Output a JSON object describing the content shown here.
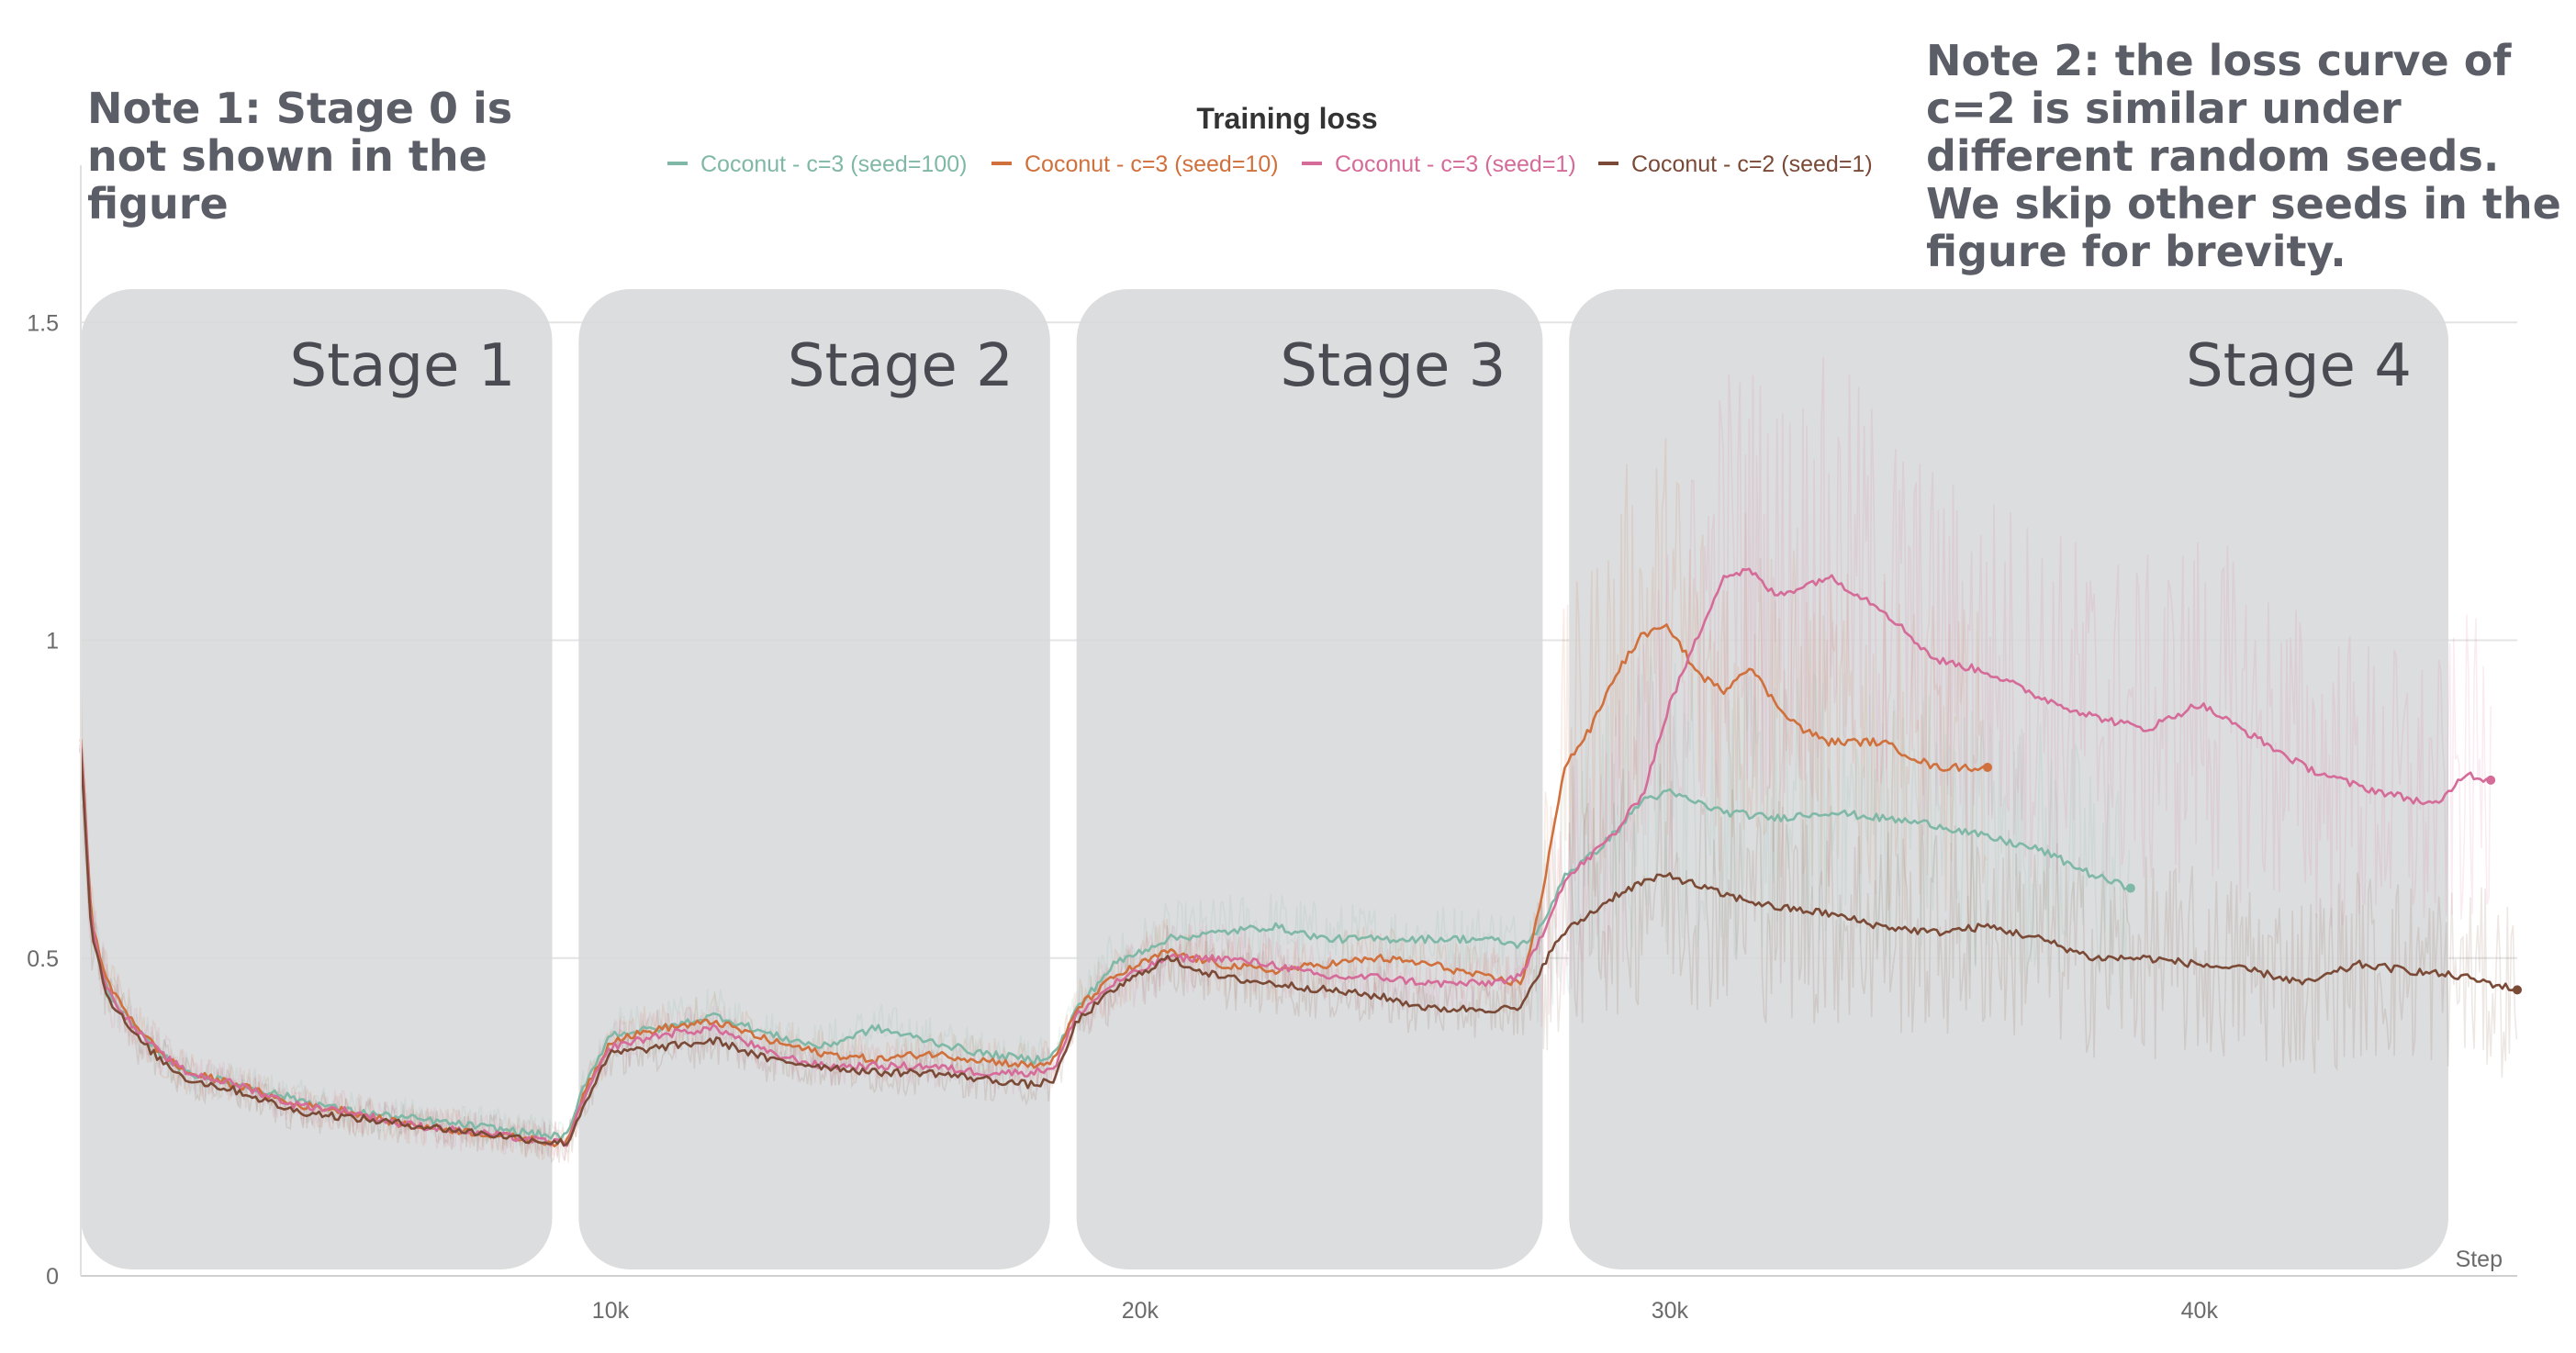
{
  "notes": {
    "note1": "Note 1: Stage 0 is not shown in the figure",
    "note2": "Note 2: the loss curve of c=2 is similar under different random seeds. We skip other seeds in the figure for brevity."
  },
  "chart_data": {
    "type": "line",
    "title": "Training loss",
    "xlabel": "Step",
    "ylabel": "",
    "xlim": [
      0,
      46000
    ],
    "ylim": [
      0,
      1.6
    ],
    "x_ticks": [
      10000,
      20000,
      30000,
      40000
    ],
    "x_tick_labels": [
      "10k",
      "20k",
      "30k",
      "40k"
    ],
    "y_ticks": [
      0,
      0.5,
      1,
      1.5
    ],
    "y_tick_labels": [
      "0",
      "0.5",
      "1",
      "1.5"
    ],
    "grid": true,
    "legend_position": "top-center",
    "stages": [
      {
        "label": "Stage 1",
        "x": [
          0,
          8900
        ]
      },
      {
        "label": "Stage 2",
        "x": [
          9400,
          18300
        ]
      },
      {
        "label": "Stage 3",
        "x": [
          18800,
          27600
        ]
      },
      {
        "label": "Stage 4",
        "x": [
          28100,
          44700
        ]
      }
    ],
    "series": [
      {
        "name": "Coconut - c=3 (seed=100)",
        "color": "#7fb8a6",
        "x": [
          0,
          200,
          500,
          1000,
          1500,
          2000,
          3000,
          4000,
          5000,
          6000,
          7000,
          8000,
          8900,
          9200,
          9500,
          10000,
          11000,
          12000,
          13000,
          14000,
          15000,
          16000,
          17000,
          18000,
          18400,
          18800,
          19500,
          20500,
          21500,
          22500,
          23500,
          24500,
          25500,
          26500,
          27200,
          27600,
          28000,
          28500,
          29000,
          29500,
          30000,
          31000,
          32000,
          33000,
          34000,
          35000,
          36000,
          37000,
          38000,
          38700
        ],
        "y": [
          0.83,
          0.55,
          0.45,
          0.39,
          0.35,
          0.32,
          0.3,
          0.28,
          0.26,
          0.25,
          0.24,
          0.23,
          0.22,
          0.22,
          0.3,
          0.38,
          0.39,
          0.41,
          0.38,
          0.36,
          0.39,
          0.37,
          0.35,
          0.34,
          0.35,
          0.42,
          0.49,
          0.53,
          0.54,
          0.55,
          0.53,
          0.53,
          0.53,
          0.53,
          0.52,
          0.55,
          0.63,
          0.66,
          0.7,
          0.75,
          0.76,
          0.73,
          0.72,
          0.73,
          0.72,
          0.71,
          0.69,
          0.67,
          0.63,
          0.61
        ]
      },
      {
        "name": "Coconut - c=3 (seed=10)",
        "color": "#d0703c",
        "x": [
          0,
          200,
          500,
          1000,
          1500,
          2000,
          3000,
          4000,
          5000,
          6000,
          7000,
          8000,
          8900,
          9200,
          9500,
          10000,
          11000,
          12000,
          13000,
          14000,
          15000,
          16000,
          17000,
          18000,
          18400,
          18800,
          19500,
          20500,
          21500,
          22500,
          23500,
          24500,
          25500,
          26500,
          27200,
          27600,
          28000,
          28500,
          29000,
          29500,
          30000,
          30500,
          31000,
          31500,
          32000,
          32500,
          33000,
          34000,
          35000,
          36000
        ],
        "y": [
          0.85,
          0.56,
          0.46,
          0.4,
          0.35,
          0.32,
          0.3,
          0.27,
          0.26,
          0.24,
          0.23,
          0.22,
          0.21,
          0.21,
          0.29,
          0.37,
          0.39,
          0.4,
          0.37,
          0.35,
          0.34,
          0.35,
          0.34,
          0.33,
          0.34,
          0.42,
          0.47,
          0.51,
          0.49,
          0.48,
          0.49,
          0.5,
          0.49,
          0.47,
          0.46,
          0.6,
          0.8,
          0.86,
          0.95,
          1.01,
          1.02,
          0.95,
          0.92,
          0.96,
          0.9,
          0.86,
          0.84,
          0.84,
          0.8,
          0.8
        ]
      },
      {
        "name": "Coconut - c=3 (seed=1)",
        "color": "#d56b98",
        "x": [
          0,
          200,
          500,
          1000,
          1500,
          2000,
          3000,
          4000,
          5000,
          6000,
          7000,
          8000,
          8900,
          9200,
          9500,
          10000,
          11000,
          12000,
          13000,
          14000,
          15000,
          16000,
          17000,
          18000,
          18400,
          18800,
          19500,
          20500,
          21500,
          22500,
          23500,
          24500,
          25500,
          26500,
          27200,
          27600,
          28000,
          28500,
          29000,
          29500,
          30000,
          30500,
          31000,
          31500,
          32000,
          33000,
          34000,
          35000,
          36000,
          37000,
          38000,
          39000,
          40000,
          41000,
          42000,
          43000,
          44000,
          44500,
          45000,
          45500
        ],
        "y": [
          0.84,
          0.55,
          0.45,
          0.39,
          0.35,
          0.32,
          0.3,
          0.27,
          0.26,
          0.24,
          0.23,
          0.22,
          0.21,
          0.21,
          0.28,
          0.36,
          0.38,
          0.39,
          0.35,
          0.33,
          0.33,
          0.33,
          0.32,
          0.32,
          0.33,
          0.41,
          0.46,
          0.5,
          0.5,
          0.49,
          0.47,
          0.47,
          0.46,
          0.46,
          0.47,
          0.54,
          0.62,
          0.66,
          0.7,
          0.76,
          0.9,
          1.0,
          1.1,
          1.11,
          1.07,
          1.1,
          1.05,
          0.97,
          0.95,
          0.91,
          0.88,
          0.86,
          0.9,
          0.85,
          0.8,
          0.77,
          0.75,
          0.74,
          0.79,
          0.78
        ]
      },
      {
        "name": "Coconut - c=2 (seed=1)",
        "color": "#7a4a36",
        "x": [
          0,
          200,
          500,
          1000,
          1500,
          2000,
          3000,
          4000,
          5000,
          6000,
          7000,
          8000,
          8900,
          9200,
          9500,
          10000,
          11000,
          12000,
          13000,
          14000,
          15000,
          16000,
          17000,
          18000,
          18400,
          18800,
          19500,
          20500,
          21500,
          22500,
          23500,
          24500,
          25500,
          26500,
          27200,
          27600,
          28000,
          28500,
          29000,
          29500,
          30000,
          31000,
          32000,
          33000,
          34000,
          35000,
          36000,
          37000,
          38000,
          39000,
          40000,
          41000,
          42000,
          43000,
          44000,
          45000,
          46000
        ],
        "y": [
          0.83,
          0.54,
          0.44,
          0.38,
          0.34,
          0.31,
          0.29,
          0.26,
          0.25,
          0.24,
          0.23,
          0.22,
          0.21,
          0.21,
          0.27,
          0.35,
          0.36,
          0.37,
          0.34,
          0.33,
          0.32,
          0.32,
          0.31,
          0.3,
          0.31,
          0.4,
          0.45,
          0.5,
          0.47,
          0.46,
          0.45,
          0.44,
          0.42,
          0.42,
          0.42,
          0.49,
          0.54,
          0.57,
          0.6,
          0.62,
          0.63,
          0.6,
          0.58,
          0.57,
          0.55,
          0.54,
          0.55,
          0.53,
          0.5,
          0.5,
          0.49,
          0.48,
          0.46,
          0.49,
          0.48,
          0.47,
          0.45
        ]
      }
    ]
  }
}
